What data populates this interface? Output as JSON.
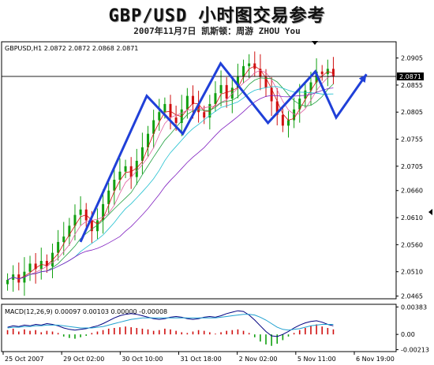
{
  "header": {
    "title": "GBP/USD  小时图交易参考",
    "subtitle": "2007年11月7日   凯斯顿：周游 ZHOU You"
  },
  "chart_data": [
    {
      "type": "candlestick",
      "symbol_info": "GBPUSD,H1  2.0872 2.0872 2.0868 2.0871",
      "ylim": [
        2.046,
        2.0935
      ],
      "y_ticks": [
        "2.0905",
        "2.0855",
        "2.0805",
        "2.0755",
        "2.0705",
        "2.0660",
        "2.0610",
        "2.0560",
        "2.0510",
        "2.0465"
      ],
      "y_tick_values": [
        2.0905,
        2.0855,
        2.0805,
        2.0755,
        2.0705,
        2.066,
        2.061,
        2.056,
        2.051,
        2.0465
      ],
      "current_price": "2.0871",
      "current_price_value": 2.0871,
      "x_ticks": [
        "25 Oct 2007",
        "29 Oct 02:00",
        "30 Oct 10:00",
        "31 Oct 18:00",
        "2 Nov 02:00",
        "5 Nov 11:00",
        "6 Nov 19:00"
      ],
      "price_path": [
        2.0495,
        2.0505,
        2.049,
        2.051,
        2.0525,
        2.0515,
        2.053,
        2.052,
        2.0545,
        2.0565,
        2.0575,
        2.0595,
        2.0615,
        2.0625,
        2.0605,
        2.0585,
        2.0605,
        2.0635,
        2.066,
        2.068,
        2.0695,
        2.0705,
        2.0685,
        2.0715,
        2.074,
        2.0765,
        2.079,
        2.0805,
        2.082,
        2.0795,
        2.0785,
        2.081,
        2.0835,
        2.082,
        2.0805,
        2.0795,
        2.082,
        2.084,
        2.0855,
        2.083,
        2.085,
        2.087,
        2.089,
        2.0895,
        2.0885,
        2.087,
        2.085,
        2.0825,
        2.08,
        2.078,
        2.079,
        2.081,
        2.083,
        2.0845,
        2.086,
        2.088,
        2.0875,
        2.0885,
        2.0871
      ],
      "projection_line": [
        [
          0.2,
          2.0565
        ],
        [
          0.375,
          2.0835
        ],
        [
          0.47,
          2.0765
        ],
        [
          0.57,
          2.0895
        ],
        [
          0.695,
          2.0785
        ],
        [
          0.82,
          2.088
        ],
        [
          0.875,
          2.0795
        ],
        [
          0.955,
          2.0875
        ]
      ],
      "line_color": "#2040d8",
      "colors": {
        "up": "#10a010",
        "down": "#d01010",
        "ma": [
          "#d01010",
          "#e060a0",
          "#20a040",
          "#20c0d0",
          "#8020c0"
        ]
      }
    },
    {
      "type": "bar",
      "indicator": "MACD(12,26,9) 0.00097 0.00103 0.00000 -0.00008",
      "y_ticks": [
        "0.00383",
        "0.00",
        "-0.00213"
      ],
      "y_tick_values": [
        0.00383,
        0.0,
        -0.00213
      ],
      "ylim": [
        -0.0024,
        0.0042
      ],
      "histogram": [
        0.0006,
        0.0008,
        0.0004,
        0.0007,
        0.0005,
        0.0006,
        0.0003,
        0.0005,
        0.0004,
        0.0002,
        -0.0003,
        -0.0005,
        -0.0006,
        -0.0004,
        -0.0002,
        0.0002,
        0.0004,
        0.0006,
        0.0008,
        0.0009,
        0.001,
        0.0011,
        0.001,
        0.0009,
        0.0008,
        0.0007,
        0.0005,
        0.0006,
        0.0008,
        0.0007,
        0.0005,
        0.0003,
        0.0002,
        0.0004,
        0.0006,
        0.0005,
        0.0003,
        0.0001,
        0.0003,
        0.0005,
        0.0006,
        0.0007,
        0.0005,
        0.0002,
        -0.0004,
        -0.001,
        -0.0014,
        -0.0016,
        -0.0013,
        -0.0008,
        -0.0003,
        0.0002,
        0.0006,
        0.0009,
        0.0012,
        0.0014,
        0.0011,
        0.0009,
        0.0007
      ],
      "macd_line": [
        0.001,
        0.0012,
        0.0011,
        0.0013,
        0.0012,
        0.0014,
        0.0013,
        0.0015,
        0.0014,
        0.0012,
        0.0009,
        0.0007,
        0.0006,
        0.0007,
        0.0008,
        0.001,
        0.0012,
        0.0015,
        0.0019,
        0.0023,
        0.0026,
        0.0028,
        0.0029,
        0.0028,
        0.0026,
        0.0024,
        0.0022,
        0.0021,
        0.0022,
        0.0024,
        0.0025,
        0.0024,
        0.0022,
        0.0021,
        0.0022,
        0.0024,
        0.0025,
        0.0024,
        0.0026,
        0.0029,
        0.0031,
        0.0033,
        0.0032,
        0.0027,
        0.002,
        0.0012,
        0.0004,
        -0.0002,
        -0.0003,
        0.0,
        0.0004,
        0.0009,
        0.0013,
        0.0016,
        0.0018,
        0.0019,
        0.0017,
        0.0014,
        0.0012
      ],
      "signal_line": [
        0.0009,
        0.001,
        0.001,
        0.0011,
        0.0011,
        0.0012,
        0.0012,
        0.0013,
        0.0013,
        0.0013,
        0.0012,
        0.0011,
        0.001,
        0.0009,
        0.0009,
        0.0009,
        0.001,
        0.0011,
        0.0013,
        0.0015,
        0.0017,
        0.0019,
        0.0021,
        0.0022,
        0.0023,
        0.0023,
        0.0023,
        0.0023,
        0.0023,
        0.0023,
        0.0023,
        0.0023,
        0.0023,
        0.0023,
        0.0023,
        0.0023,
        0.0023,
        0.0023,
        0.0024,
        0.0025,
        0.0026,
        0.0027,
        0.0028,
        0.0028,
        0.0027,
        0.0024,
        0.002,
        0.0015,
        0.001,
        0.0007,
        0.0006,
        0.0007,
        0.0008,
        0.001,
        0.0012,
        0.0013,
        0.0014,
        0.0014,
        0.0014
      ]
    }
  ]
}
